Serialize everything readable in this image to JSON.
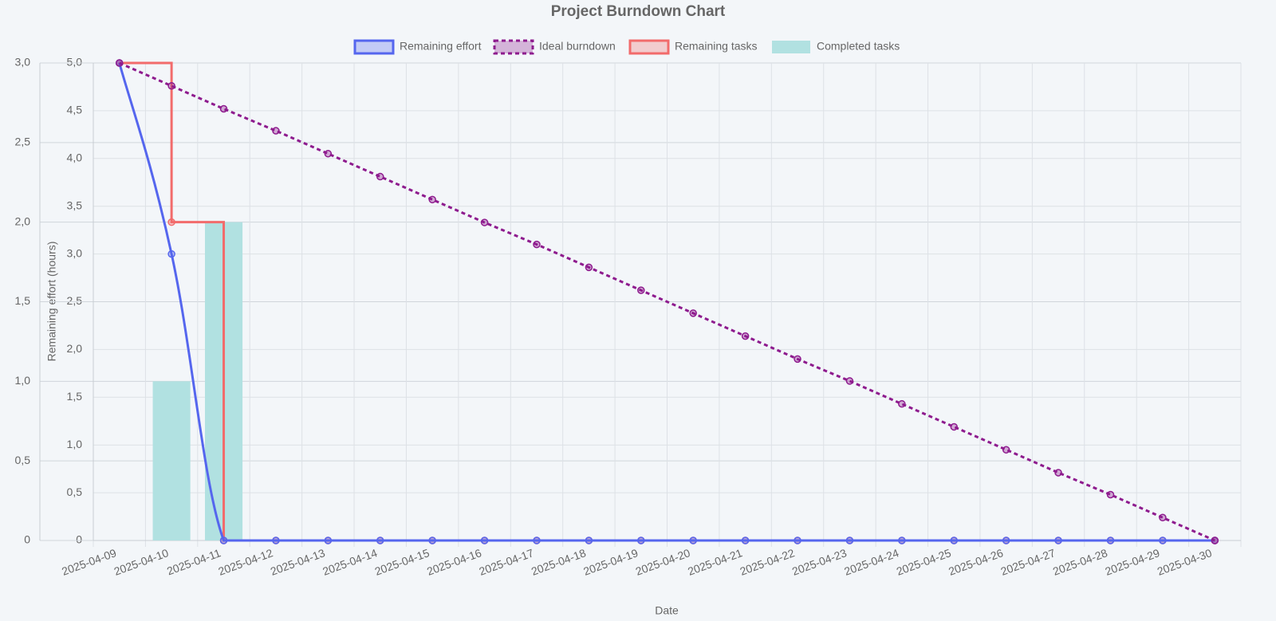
{
  "chart_data": {
    "type": "burndown",
    "title": "Project Burndown Chart",
    "x_label": "Date",
    "y_label": "Remaining effort (hours)",
    "categories": [
      "2025-04-09",
      "2025-04-10",
      "2025-04-11",
      "2025-04-12",
      "2025-04-13",
      "2025-04-14",
      "2025-04-15",
      "2025-04-16",
      "2025-04-17",
      "2025-04-18",
      "2025-04-19",
      "2025-04-20",
      "2025-04-21",
      "2025-04-22",
      "2025-04-23",
      "2025-04-24",
      "2025-04-25",
      "2025-04-26",
      "2025-04-27",
      "2025-04-28",
      "2025-04-29",
      "2025-04-30"
    ],
    "series": [
      {
        "name": "Remaining effort",
        "type": "line",
        "smooth": true,
        "color": "#5566ee",
        "values": [
          5,
          3,
          0,
          0,
          0,
          0,
          0,
          0,
          0,
          0,
          0,
          0,
          0,
          0,
          0,
          0,
          0,
          0,
          0,
          0,
          0,
          0
        ]
      },
      {
        "name": "Ideal burndown",
        "type": "line",
        "dashed": true,
        "color": "#8e1b8e",
        "values": [
          5,
          4.76,
          4.52,
          4.29,
          4.05,
          3.81,
          3.57,
          3.33,
          3.1,
          2.86,
          2.62,
          2.38,
          2.14,
          1.9,
          1.67,
          1.43,
          1.19,
          0.95,
          0.71,
          0.48,
          0.24,
          0
        ]
      },
      {
        "name": "Remaining tasks",
        "type": "step",
        "axis": "y2",
        "color": "#f26b6b",
        "values": [
          3,
          2,
          0,
          0,
          0,
          0,
          0,
          0,
          0,
          0,
          0,
          0,
          0,
          0,
          0,
          0,
          0,
          0,
          0,
          0,
          0,
          0
        ]
      },
      {
        "name": "Completed tasks",
        "type": "bar",
        "axis": "y2",
        "color": "#b1e1e1",
        "values": [
          0,
          1,
          2,
          0,
          0,
          0,
          0,
          0,
          0,
          0,
          0,
          0,
          0,
          0,
          0,
          0,
          0,
          0,
          0,
          0,
          0,
          0
        ]
      }
    ],
    "ylim": [
      0,
      5
    ],
    "yticks": [
      0,
      {
        "value": 0.5,
        "label": "0,5"
      },
      {
        "value": 1,
        "label": "1,0"
      },
      {
        "value": 1.5,
        "label": "1,5"
      },
      {
        "value": 2,
        "label": "2,0"
      },
      {
        "value": 2.5,
        "label": "2,5"
      },
      {
        "value": 3,
        "label": "3,0"
      },
      {
        "value": 3.5,
        "label": "3,5"
      },
      {
        "value": 4,
        "label": "4,0"
      },
      {
        "value": 4.5,
        "label": "4,5"
      },
      {
        "value": 5,
        "label": "5,0"
      }
    ],
    "y2lim": [
      0,
      3
    ],
    "y2ticks": [
      0,
      {
        "value": 0.5,
        "label": "0,5"
      },
      {
        "value": 1,
        "label": "1,0"
      },
      {
        "value": 1.5,
        "label": "1,5"
      },
      {
        "value": 2,
        "label": "2,0"
      },
      {
        "value": 2.5,
        "label": "2,5"
      },
      {
        "value": 3,
        "label": "3,0"
      }
    ],
    "grid": true,
    "legend": "top"
  }
}
